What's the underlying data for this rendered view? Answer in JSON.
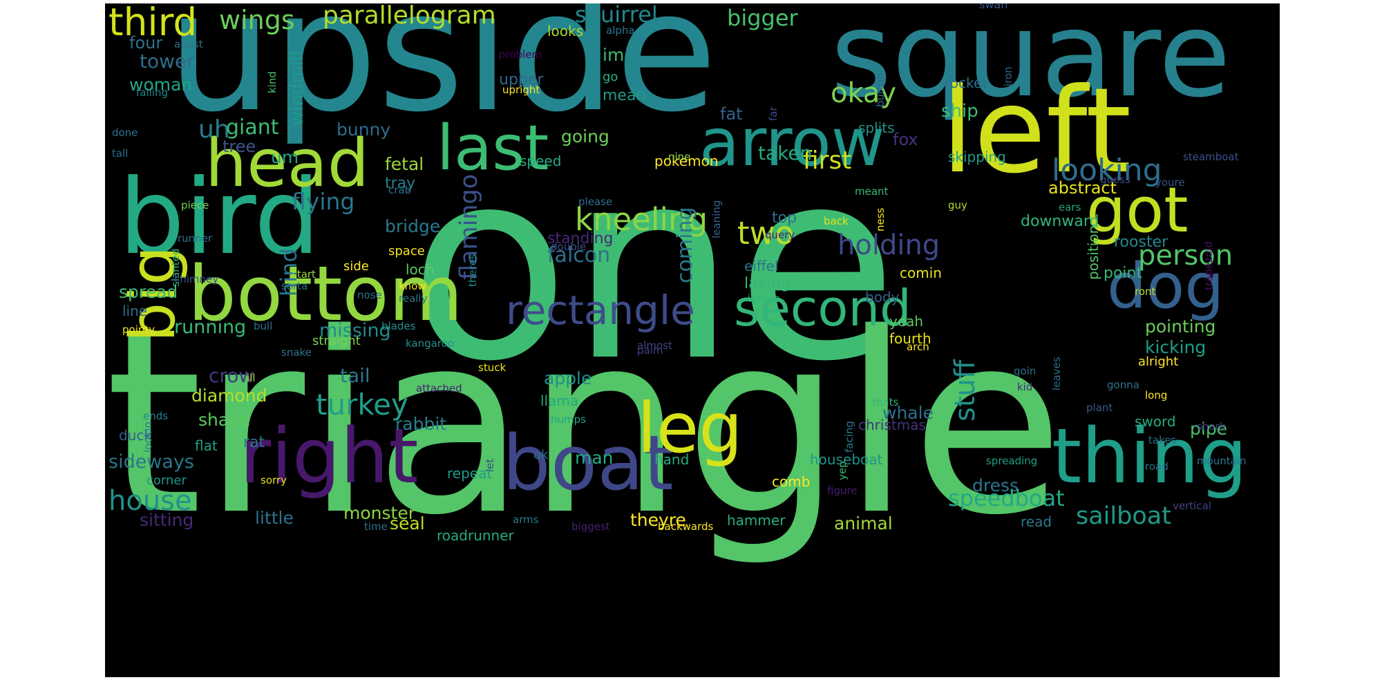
{
  "words": [
    {
      "text": "one",
      "color": "#3fbc73"
    },
    {
      "text": "triangle",
      "color": "#54c568"
    },
    {
      "text": "upside",
      "color": "#24868e"
    },
    {
      "text": "square",
      "color": "#27808e"
    },
    {
      "text": "left",
      "color": "#d0e11c"
    },
    {
      "text": "bird",
      "color": "#23a983"
    },
    {
      "text": "bottom",
      "color": "#93d741"
    },
    {
      "text": "right",
      "color": "#48186a"
    },
    {
      "text": "boat",
      "color": "#3f4788"
    },
    {
      "text": "thing",
      "color": "#1f9e89"
    },
    {
      "text": "arrow",
      "color": "#1f958b"
    },
    {
      "text": "head",
      "color": "#a2da37"
    },
    {
      "text": "last",
      "color": "#3dbc74"
    },
    {
      "text": "got",
      "color": "#c2df23"
    },
    {
      "text": "big",
      "color": "#c8e020"
    },
    {
      "text": "dog",
      "color": "#34608d"
    },
    {
      "text": "leg",
      "color": "#d8e219"
    },
    {
      "text": "second",
      "color": "#32b67a"
    },
    {
      "text": "rectangle",
      "color": "#3e4c8a"
    },
    {
      "text": "third",
      "color": "#d2e21b"
    },
    {
      "text": "wings",
      "color": "#6ccd5a"
    },
    {
      "text": "parallelogram",
      "color": "#b5de2b"
    },
    {
      "text": "squirrel",
      "color": "#24878e"
    },
    {
      "text": "bigger",
      "color": "#48c16e"
    },
    {
      "text": "swan",
      "color": "#39558c"
    },
    {
      "text": "four",
      "color": "#2d708e"
    },
    {
      "text": "apost",
      "color": "#2b758e"
    },
    {
      "text": "alpha",
      "color": "#2a788e"
    },
    {
      "text": "looks",
      "color": "#addc30"
    },
    {
      "text": "tower",
      "color": "#2e6e8e"
    },
    {
      "text": "im",
      "color": "#3fbc73"
    },
    {
      "text": "problem",
      "color": "#440256"
    },
    {
      "text": "woman",
      "color": "#22a785"
    },
    {
      "text": "windmill",
      "color": "#1e9b8a"
    },
    {
      "text": "upper",
      "color": "#31688e"
    },
    {
      "text": "go",
      "color": "#2ab07f"
    },
    {
      "text": "kind",
      "color": "#4ac16d"
    },
    {
      "text": "falling",
      "color": "#25848e"
    },
    {
      "text": "upright",
      "color": "#fde725"
    },
    {
      "text": "mean",
      "color": "#1f9a8a"
    },
    {
      "text": "okay",
      "color": "#7cd250"
    },
    {
      "text": "uh",
      "color": "#277f8e"
    },
    {
      "text": "giant",
      "color": "#3ebc74"
    },
    {
      "text": "going",
      "color": "#6ece58"
    },
    {
      "text": "fat",
      "color": "#33638d"
    },
    {
      "text": "ship",
      "color": "#3fbc73"
    },
    {
      "text": "bunny",
      "color": "#2e6d8e"
    },
    {
      "text": "um",
      "color": "#20a386"
    },
    {
      "text": "tree",
      "color": "#39568c"
    },
    {
      "text": "fox",
      "color": "#46337f"
    },
    {
      "text": "first",
      "color": "#cde11d"
    },
    {
      "text": "taken",
      "color": "#24aa83"
    },
    {
      "text": "pokemon",
      "color": "#fde725"
    },
    {
      "text": "skipping",
      "color": "#1f9e89"
    },
    {
      "text": "steamboat",
      "color": "#3b528b"
    },
    {
      "text": "looking",
      "color": "#2e6d8e"
    },
    {
      "text": "flamingo",
      "color": "#3b518b"
    },
    {
      "text": "hind",
      "color": "#2b748e"
    },
    {
      "text": "flying",
      "color": "#2a778e"
    },
    {
      "text": "fetal",
      "color": "#9bd93c"
    },
    {
      "text": "speed",
      "color": "#25ab82"
    },
    {
      "text": "nine",
      "color": "#90d743"
    },
    {
      "text": "tray",
      "color": "#277f8e"
    },
    {
      "text": "abstract",
      "color": "#e5e419"
    },
    {
      "text": "guess",
      "color": "#3d4e8a"
    },
    {
      "text": "youre",
      "color": "#39568c"
    },
    {
      "text": "crab",
      "color": "#2c718e"
    },
    {
      "text": "please",
      "color": "#2c728e"
    },
    {
      "text": "piece",
      "color": "#77d153"
    },
    {
      "text": "leaning",
      "color": "#34618d"
    },
    {
      "text": "meant",
      "color": "#3bbb75"
    },
    {
      "text": "back",
      "color": "#e2e418"
    },
    {
      "text": "kneeling",
      "color": "#8bd646"
    },
    {
      "text": "bridge",
      "color": "#2a788e"
    },
    {
      "text": "two",
      "color": "#bade28"
    },
    {
      "text": "top",
      "color": "#2d708e"
    },
    {
      "text": "guy",
      "color": "#b0dd2f"
    },
    {
      "text": "ears",
      "color": "#20a486"
    },
    {
      "text": "downward",
      "color": "#33b679"
    },
    {
      "text": "ness",
      "color": "#fde725"
    },
    {
      "text": "runner",
      "color": "#2b748e"
    },
    {
      "text": "standing",
      "color": "#482878"
    },
    {
      "text": "query",
      "color": "#482475"
    },
    {
      "text": "holding",
      "color": "#3e4989"
    },
    {
      "text": "person",
      "color": "#52c569"
    },
    {
      "text": "rooster",
      "color": "#23898e"
    },
    {
      "text": "slanted",
      "color": "#31b57b"
    },
    {
      "text": "space",
      "color": "#f1e51d"
    },
    {
      "text": "theres",
      "color": "#218e8d"
    },
    {
      "text": "falcon",
      "color": "#2d708e"
    },
    {
      "text": "coming",
      "color": "#2a778e"
    },
    {
      "text": "eiffel",
      "color": "#2b758e"
    },
    {
      "text": "side",
      "color": "#fde725"
    },
    {
      "text": "double",
      "color": "#3a548c"
    },
    {
      "text": "start",
      "color": "#9dd93b"
    },
    {
      "text": "loch",
      "color": "#5cc863"
    },
    {
      "text": "laying",
      "color": "#34b679"
    },
    {
      "text": "comin",
      "color": "#e7e419"
    },
    {
      "text": "point",
      "color": "#37b878"
    },
    {
      "text": "chimney",
      "color": "#3b528b"
    },
    {
      "text": "sorta",
      "color": "#2c728e"
    },
    {
      "text": "nose",
      "color": "#2d718e"
    },
    {
      "text": "know",
      "color": "#f1e51d"
    },
    {
      "text": "spread",
      "color": "#3fbc73"
    },
    {
      "text": "body",
      "color": "#34608d"
    },
    {
      "text": "ront",
      "color": "#c2df23"
    },
    {
      "text": "trapezoid",
      "color": "#470e61"
    },
    {
      "text": "image",
      "color": "#31b57b"
    },
    {
      "text": "really",
      "color": "#2a788e"
    },
    {
      "text": "line",
      "color": "#2e6e8e"
    },
    {
      "text": "pointy",
      "color": "#f1e51d"
    },
    {
      "text": "running",
      "color": "#3aba76"
    },
    {
      "text": "missing",
      "color": "#238a8d"
    },
    {
      "text": "yeah",
      "color": "#5ec962"
    },
    {
      "text": "pointing",
      "color": "#6ccd5a"
    },
    {
      "text": "blades",
      "color": "#21918c"
    },
    {
      "text": "bull",
      "color": "#2c718e"
    },
    {
      "text": "straight",
      "color": "#7ad151"
    },
    {
      "text": "kangaroo",
      "color": "#21908d"
    },
    {
      "text": "almost",
      "color": "#414487"
    },
    {
      "text": "fourth",
      "color": "#e5e419"
    },
    {
      "text": "kicking",
      "color": "#1f9f88"
    },
    {
      "text": "arch",
      "color": "#fde725"
    },
    {
      "text": "snake",
      "color": "#2b758e"
    },
    {
      "text": "palm",
      "color": "#424086"
    },
    {
      "text": "stuff",
      "color": "#21918c"
    },
    {
      "text": "crow",
      "color": "#443a83"
    },
    {
      "text": "tail",
      "color": "#2a778e"
    },
    {
      "text": "ill",
      "color": "#a5db36"
    },
    {
      "text": "stuck",
      "color": "#ece51b"
    },
    {
      "text": "alright",
      "color": "#fde725"
    },
    {
      "text": "leaves",
      "color": "#2c718e"
    },
    {
      "text": "goin",
      "color": "#2c728e"
    },
    {
      "text": "apple",
      "color": "#21908d"
    },
    {
      "text": "attached",
      "color": "#482173"
    },
    {
      "text": "kid",
      "color": "#46307e"
    },
    {
      "text": "gonna",
      "color": "#2c728e"
    },
    {
      "text": "diamond",
      "color": "#b5de2b"
    },
    {
      "text": "turkey",
      "color": "#1f9e89"
    },
    {
      "text": "llama",
      "color": "#22a884"
    },
    {
      "text": "thats",
      "color": "#34b679"
    },
    {
      "text": "whale",
      "color": "#2e6e8e"
    },
    {
      "text": "long",
      "color": "#fde725"
    },
    {
      "text": "plant",
      "color": "#38598c"
    },
    {
      "text": "ends",
      "color": "#25848e"
    },
    {
      "text": "lookin",
      "color": "#26828e"
    },
    {
      "text": "facing",
      "color": "#29798e"
    },
    {
      "text": "shape",
      "color": "#5ec962"
    },
    {
      "text": "rabbit",
      "color": "#277f8e"
    },
    {
      "text": "humps",
      "color": "#20a386"
    },
    {
      "text": "christmas",
      "color": "#46337f"
    },
    {
      "text": "sword",
      "color": "#25ac82"
    },
    {
      "text": "pipe",
      "color": "#4ac16d"
    },
    {
      "text": "shark",
      "color": "#433d84"
    },
    {
      "text": "duck",
      "color": "#34618d"
    },
    {
      "text": "takes",
      "color": "#2d708e"
    },
    {
      "text": "rat",
      "color": "#2a788e"
    },
    {
      "text": "flat",
      "color": "#1fa187"
    },
    {
      "text": "let",
      "color": "#3e4989"
    },
    {
      "text": "ok",
      "color": "#2c718e"
    },
    {
      "text": "man",
      "color": "#25ab82"
    },
    {
      "text": "yep",
      "color": "#3aba76"
    },
    {
      "text": "hand",
      "color": "#25ab82"
    },
    {
      "text": "houseboat",
      "color": "#1f958b"
    },
    {
      "text": "spreading",
      "color": "#1fa088"
    },
    {
      "text": "road",
      "color": "#2a788e"
    },
    {
      "text": "mountain",
      "color": "#2b748e"
    },
    {
      "text": "sideways",
      "color": "#2a778e"
    },
    {
      "text": "repeat",
      "color": "#1f9e89"
    },
    {
      "text": "comb",
      "color": "#fde725"
    },
    {
      "text": "dress",
      "color": "#2b758e"
    },
    {
      "text": "corner",
      "color": "#1f968b"
    },
    {
      "text": "sorry",
      "color": "#e2e418"
    },
    {
      "text": "figure",
      "color": "#481c6e"
    },
    {
      "text": "house",
      "color": "#21918c"
    },
    {
      "text": "speedboat",
      "color": "#22a884"
    },
    {
      "text": "sailboat",
      "color": "#1f9a8a"
    },
    {
      "text": "theyre",
      "color": "#fde725"
    },
    {
      "text": "vertical",
      "color": "#414487"
    },
    {
      "text": "sitting",
      "color": "#482878"
    },
    {
      "text": "little",
      "color": "#2c728e"
    },
    {
      "text": "monster",
      "color": "#8bd646"
    },
    {
      "text": "arms",
      "color": "#29798e"
    },
    {
      "text": "seal",
      "color": "#bddf26"
    },
    {
      "text": "hammer",
      "color": "#27ad81"
    },
    {
      "text": "animal",
      "color": "#a2da37"
    },
    {
      "text": "read",
      "color": "#2a788e"
    },
    {
      "text": "roadrunner",
      "color": "#25ab82"
    },
    {
      "text": "biggest",
      "color": "#482173"
    },
    {
      "text": "backwards",
      "color": "#fde725"
    },
    {
      "text": "time",
      "color": "#2c718e"
    },
    {
      "text": "button",
      "color": "#31688e"
    },
    {
      "text": "iron",
      "color": "#31688e"
    },
    {
      "text": "far",
      "color": "#3e4a89"
    },
    {
      "text": "rocket",
      "color": "#2d708e"
    },
    {
      "text": "splits",
      "color": "#21918c"
    },
    {
      "text": "done",
      "color": "#2e6e8e"
    },
    {
      "text": "tall",
      "color": "#2d708e"
    },
    {
      "text": "position",
      "color": "#52c569"
    }
  ]
}
